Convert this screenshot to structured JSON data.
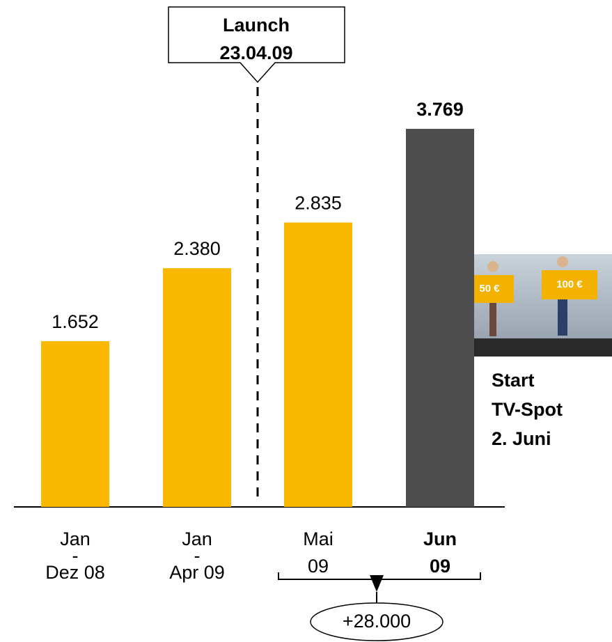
{
  "chart_data": {
    "type": "bar",
    "categories": [
      [
        "Jan",
        "-",
        "Dez 08"
      ],
      [
        "Jan",
        "-",
        "Apr 09"
      ],
      [
        "Mai",
        "09"
      ],
      [
        "Jun",
        "09"
      ]
    ],
    "values": [
      1652,
      2380,
      2835,
      3769
    ],
    "value_labels": [
      "1.652",
      "2.380",
      "2.835",
      "3.769"
    ],
    "colors": [
      "#fbb800",
      "#fbb800",
      "#fbb800",
      "#4d4d4d"
    ],
    "label_colors": [
      "#999999",
      "#999999",
      "#000000",
      "#000000"
    ],
    "launch": [
      "Launch",
      "23.04.09"
    ],
    "tv_note": [
      "Start",
      "TV-Spot",
      "2. Juni"
    ],
    "tv_image_texts": [
      "50 €",
      "100 €"
    ],
    "difference": "+28.000"
  }
}
